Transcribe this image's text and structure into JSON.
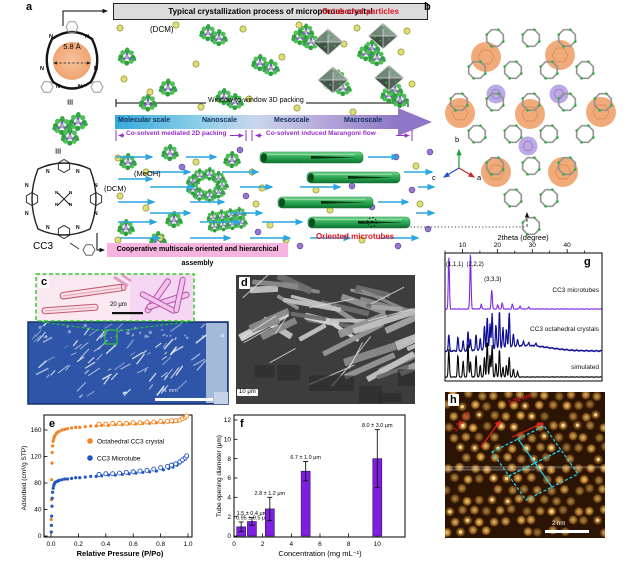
{
  "figure": {
    "panel_a": {
      "label": "a",
      "header": "Typical crystallization process of microporous crystal",
      "pore_diameter": "5.8 Å",
      "solvent_top": "(DCM)",
      "octahedral_particles_label": "Octahedral particles",
      "window_packing_label": "Window-to-window 3D packing",
      "scale_labels": [
        "Molecular scale",
        "Nanoscale",
        "Mesoscale",
        "Macroscale"
      ],
      "stage_left_label": "Co-solvent mediated 2D packing",
      "stage_right_label": "Co-solvent induced Marangoni flow",
      "solvent_meoh": "(MeOH)",
      "solvent_dcm": "(DCM)",
      "microtubes_label": "Oriented microtubes",
      "footer_label": "Cooperative multiscale oriented and hierarchical assembly",
      "molecule_name": "CC3",
      "equivalence_symbol": "≡",
      "atom_label": "N"
    },
    "panel_b": {
      "label": "b",
      "axis_b": "b",
      "axis_c": "c",
      "axis_a": "a"
    },
    "panel_c": {
      "label": "c",
      "inset_scale": "20 μm",
      "main_scale": "1 mm"
    },
    "panel_d": {
      "label": "d",
      "scale": "10 μm"
    },
    "panel_e": {
      "label": "e"
    },
    "panel_f": {
      "label": "f"
    },
    "panel_g": {
      "label": "g"
    },
    "panel_h": {
      "label": "h",
      "lattice_left": "1.25 nm",
      "lattice_right": "1.20 nm",
      "scale": "2 nm"
    }
  },
  "colors": {
    "accent_red": "#e01424",
    "accent_purple_text": "#9430c8",
    "gradient_start": "#35aadc",
    "gradient_end": "#8d77c6",
    "tube_green": "#2f9e4f",
    "orange_series": "#f58220",
    "blue_series": "#2256c0",
    "bar_purple": "#7e1fe0",
    "xrd_purple": "#7d2ae8",
    "xrd_navy": "#0d0d96"
  },
  "chart_data": [
    {
      "id": "e",
      "type": "scatter",
      "xlabel": "Relative Pressure (P/Po)",
      "ylabel": "Adsorbed (cm³/g STP)",
      "xlim": [
        0,
        1.03
      ],
      "ylim": [
        0,
        185
      ],
      "xticks": [
        "0.0",
        "0.2",
        "0.4",
        "0.6",
        "0.8",
        "1.0"
      ],
      "yticks": [
        "0",
        "40",
        "80",
        "120",
        "160"
      ],
      "legend_position": "upper-left-inside",
      "series": [
        {
          "name": "Octahedral CC3 crystal",
          "color": "#f58220",
          "adsorption": [
            [
              0.002,
              25
            ],
            [
              0.003,
              55
            ],
            [
              0.005,
              85
            ],
            [
              0.007,
              110
            ],
            [
              0.009,
              126
            ],
            [
              0.012,
              136
            ],
            [
              0.016,
              143
            ],
            [
              0.02,
              147
            ],
            [
              0.025,
              150
            ],
            [
              0.03,
              152
            ],
            [
              0.04,
              155
            ],
            [
              0.05,
              157
            ],
            [
              0.06,
              158
            ],
            [
              0.08,
              160
            ],
            [
              0.1,
              161
            ],
            [
              0.12,
              162
            ],
            [
              0.15,
              163
            ],
            [
              0.18,
              164
            ],
            [
              0.21,
              164
            ],
            [
              0.25,
              165
            ],
            [
              0.29,
              166
            ],
            [
              0.33,
              166
            ],
            [
              0.37,
              167
            ],
            [
              0.42,
              167
            ],
            [
              0.47,
              168
            ],
            [
              0.52,
              168
            ],
            [
              0.57,
              169
            ],
            [
              0.62,
              169
            ],
            [
              0.67,
              170
            ],
            [
              0.72,
              170
            ],
            [
              0.77,
              171
            ],
            [
              0.82,
              171
            ],
            [
              0.86,
              172
            ],
            [
              0.89,
              172
            ],
            [
              0.92,
              173
            ],
            [
              0.94,
              174
            ],
            [
              0.96,
              176
            ],
            [
              0.98,
              178
            ],
            [
              0.995,
              181
            ]
          ],
          "desorption": [
            [
              0.35,
              169
            ],
            [
              0.4,
              169
            ],
            [
              0.45,
              170
            ],
            [
              0.5,
              170
            ],
            [
              0.55,
              170
            ],
            [
              0.6,
              171
            ],
            [
              0.65,
              171
            ],
            [
              0.7,
              172
            ],
            [
              0.75,
              172
            ],
            [
              0.8,
              173
            ],
            [
              0.85,
              173
            ],
            [
              0.88,
              174
            ],
            [
              0.91,
              174
            ],
            [
              0.94,
              175
            ],
            [
              0.96,
              177
            ],
            [
              0.98,
              179
            ],
            [
              0.99,
              181
            ]
          ]
        },
        {
          "name": "CC3 Microtube",
          "color": "#2256c0",
          "adsorption": [
            [
              0.002,
              6
            ],
            [
              0.003,
              16
            ],
            [
              0.005,
              30
            ],
            [
              0.007,
              45
            ],
            [
              0.009,
              57
            ],
            [
              0.012,
              66
            ],
            [
              0.016,
              72
            ],
            [
              0.02,
              76
            ],
            [
              0.025,
              79
            ],
            [
              0.03,
              81
            ],
            [
              0.04,
              82
            ],
            [
              0.05,
              83
            ],
            [
              0.06,
              84
            ],
            [
              0.08,
              85
            ],
            [
              0.1,
              86
            ],
            [
              0.12,
              86
            ],
            [
              0.15,
              87
            ],
            [
              0.18,
              88
            ],
            [
              0.21,
              88
            ],
            [
              0.25,
              89
            ],
            [
              0.29,
              90
            ],
            [
              0.33,
              90
            ],
            [
              0.37,
              91
            ],
            [
              0.42,
              92
            ],
            [
              0.47,
              92
            ],
            [
              0.52,
              93
            ],
            [
              0.57,
              94
            ],
            [
              0.62,
              95
            ],
            [
              0.67,
              96
            ],
            [
              0.72,
              97
            ],
            [
              0.77,
              98
            ],
            [
              0.82,
              100
            ],
            [
              0.86,
              102
            ],
            [
              0.89,
              104
            ],
            [
              0.92,
              107
            ],
            [
              0.94,
              110
            ],
            [
              0.96,
              113
            ],
            [
              0.98,
              116
            ],
            [
              0.995,
              120
            ]
          ],
          "desorption": [
            [
              0.35,
              93
            ],
            [
              0.4,
              94
            ],
            [
              0.45,
              94
            ],
            [
              0.5,
              95
            ],
            [
              0.55,
              96
            ],
            [
              0.6,
              97
            ],
            [
              0.65,
              98
            ],
            [
              0.7,
              99
            ],
            [
              0.75,
              101
            ],
            [
              0.8,
              103
            ],
            [
              0.85,
              105
            ],
            [
              0.88,
              107
            ],
            [
              0.91,
              109
            ],
            [
              0.94,
              112
            ],
            [
              0.96,
              115
            ],
            [
              0.98,
              118
            ],
            [
              0.99,
              121
            ]
          ]
        }
      ]
    },
    {
      "id": "f",
      "type": "bar",
      "xlabel": "Concentration (mg mL⁻¹)",
      "ylabel": "Tube opening diameter (μm)",
      "xlim": [
        0,
        12
      ],
      "ylim": [
        0,
        12
      ],
      "xticks": [
        "0",
        "2",
        "4",
        "6",
        "8",
        "10"
      ],
      "yticks": [
        "0",
        "2",
        "4",
        "6",
        "8",
        "10",
        "12"
      ],
      "bar_color": "#7e1fe0",
      "bars": [
        {
          "concentration": 0.5,
          "diameter": 0.95,
          "error": 0.5,
          "label": "0.95 ± 0.5 μm"
        },
        {
          "concentration": 1.25,
          "diameter": 1.5,
          "error": 0.4,
          "label": "1.5 ± 0.4 μm"
        },
        {
          "concentration": 2.5,
          "diameter": 2.8,
          "error": 1.2,
          "label": "2.8 ± 1.2 μm"
        },
        {
          "concentration": 5,
          "diameter": 6.7,
          "error": 1.0,
          "label": "6.7 ± 1.0 μm"
        },
        {
          "concentration": 10,
          "diameter": 8.0,
          "error": 3.0,
          "label": "8.0 ± 3.0 μm"
        }
      ]
    },
    {
      "id": "g",
      "type": "line",
      "xlabel": "2theta (degree)",
      "xlabel_position": "top",
      "xlim": [
        5,
        50
      ],
      "xticks": [
        "10",
        "20",
        "30",
        "40"
      ],
      "series": [
        {
          "name": "CC3 microtubes",
          "color": "#7d2ae8",
          "peaks": [
            [
              6.1,
              52
            ],
            [
              12.3,
              57
            ],
            [
              15.4,
              5
            ],
            [
              18.4,
              19
            ],
            [
              20.1,
              4
            ],
            [
              21.4,
              6
            ],
            [
              24.3,
              5
            ],
            [
              26.5,
              3
            ],
            [
              29.0,
              2
            ]
          ],
          "peak_labels": [
            {
              "text": "(1,1,1)",
              "x": 6.1
            },
            {
              "text": "(2,2,2)",
              "x": 12.3
            },
            {
              "text": "(3,3,3)",
              "x": 18.4
            }
          ]
        },
        {
          "name": "CC3 octahedral crystals",
          "color": "#0d0d96",
          "hump": true,
          "peaks": [
            [
              6.1,
              16
            ],
            [
              8.7,
              14
            ],
            [
              10.2,
              10
            ],
            [
              11.6,
              20
            ],
            [
              12.3,
              12
            ],
            [
              13.9,
              16
            ],
            [
              15.1,
              12
            ],
            [
              16.3,
              24
            ],
            [
              17.1,
              33
            ],
            [
              17.9,
              26
            ],
            [
              18.5,
              36
            ],
            [
              19.6,
              24
            ],
            [
              20.6,
              38
            ],
            [
              21.6,
              20
            ],
            [
              22.6,
              18
            ],
            [
              23.4,
              34
            ],
            [
              24.6,
              12
            ],
            [
              25.8,
              6
            ],
            [
              27.5,
              4
            ],
            [
              29.0,
              3
            ],
            [
              31.0,
              3
            ]
          ]
        },
        {
          "name": "simulated",
          "color": "#000000",
          "peaks": [
            [
              6.1,
              28
            ],
            [
              8.7,
              22
            ],
            [
              10.2,
              16
            ],
            [
              11.6,
              34
            ],
            [
              12.3,
              16
            ],
            [
              13.9,
              22
            ],
            [
              15.1,
              12
            ],
            [
              16.3,
              20
            ],
            [
              17.1,
              36
            ],
            [
              17.9,
              22
            ],
            [
              18.5,
              32
            ],
            [
              19.6,
              14
            ],
            [
              20.6,
              28
            ],
            [
              21.6,
              10
            ],
            [
              22.6,
              12
            ],
            [
              23.4,
              20
            ],
            [
              24.6,
              8
            ],
            [
              25.8,
              5
            ]
          ]
        }
      ]
    }
  ]
}
